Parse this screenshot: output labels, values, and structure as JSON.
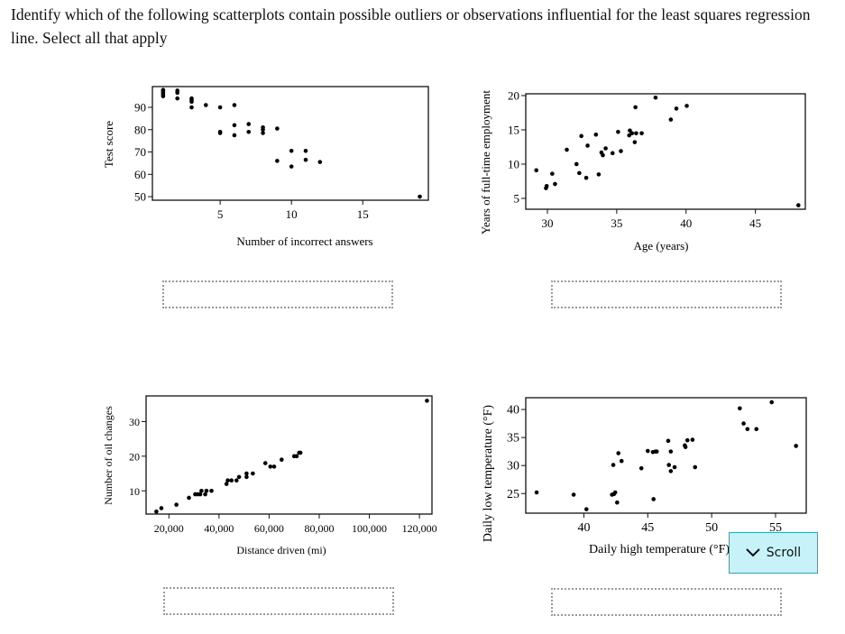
{
  "question": {
    "prompt": "Identify which of the following scatterplots contain possible outliers or observations influential for the least squares regression line. Select all that apply"
  },
  "answer_boxes": [
    "",
    "",
    "",
    ""
  ],
  "scroll_button": {
    "label": "Scroll",
    "icon": "chevron-down-icon",
    "background": "#c6f2f8",
    "border": "#2aa6b4"
  },
  "chart_data": [
    {
      "type": "scatter",
      "xlabel": "Number of incorrect answers",
      "ylabel": "Test score",
      "xlim": [
        0.25,
        19.6
      ],
      "ylim": [
        48.4,
        99.3
      ],
      "xticks": [
        5,
        10,
        15
      ],
      "xtick_labels": [
        "5",
        "10",
        "15"
      ],
      "yticks": [
        50,
        60,
        70,
        80,
        90
      ],
      "ytick_labels": [
        "50",
        "60",
        "70",
        "80",
        "90"
      ],
      "grid": false,
      "points": [
        [
          1,
          95
        ],
        [
          1,
          95.8
        ],
        [
          1,
          96.5
        ],
        [
          1,
          97.3
        ],
        [
          1,
          97.8
        ],
        [
          2,
          94
        ],
        [
          2,
          96.5
        ],
        [
          2,
          97.5
        ],
        [
          3,
          90
        ],
        [
          3,
          92.5
        ],
        [
          3,
          93.3
        ],
        [
          3,
          94
        ],
        [
          4,
          91
        ],
        [
          5,
          90
        ],
        [
          5,
          78.5
        ],
        [
          5,
          79
        ],
        [
          6,
          91
        ],
        [
          6,
          82
        ],
        [
          6,
          77.5
        ],
        [
          7,
          82.5
        ],
        [
          7,
          79
        ],
        [
          8,
          81
        ],
        [
          8,
          80
        ],
        [
          8,
          78.5
        ],
        [
          9,
          80.5
        ],
        [
          9,
          66
        ],
        [
          10,
          70.5
        ],
        [
          10,
          63.5
        ],
        [
          11,
          70.5
        ],
        [
          11,
          66.5
        ],
        [
          12,
          65.5
        ],
        [
          19,
          50
        ]
      ]
    },
    {
      "type": "scatter",
      "xlabel": "Age (years)",
      "ylabel": "Years of full-time employment",
      "xlim": [
        28.44,
        48.6
      ],
      "ylim": [
        3.42,
        20.26
      ],
      "xticks": [
        30,
        35,
        40,
        45
      ],
      "xtick_labels": [
        "30",
        "35",
        "40",
        "45"
      ],
      "yticks": [
        5,
        10,
        15,
        20
      ],
      "ytick_labels": [
        "5",
        "10",
        "15",
        "20"
      ],
      "grid": false,
      "points": [
        [
          29.2,
          9.1
        ],
        [
          29.9,
          6.5
        ],
        [
          29.95,
          6.8
        ],
        [
          30.35,
          8.6
        ],
        [
          30.55,
          7.1
        ],
        [
          31.4,
          12.1
        ],
        [
          32.1,
          10
        ],
        [
          32.3,
          8.7
        ],
        [
          32.45,
          14.1
        ],
        [
          32.8,
          8
        ],
        [
          32.9,
          12.7
        ],
        [
          33.5,
          14.3
        ],
        [
          33.7,
          8.5
        ],
        [
          33.9,
          11.7
        ],
        [
          34,
          11.3
        ],
        [
          34.2,
          12.3
        ],
        [
          34.7,
          11.6
        ],
        [
          35.1,
          14.7
        ],
        [
          35.3,
          11.9
        ],
        [
          35.9,
          14.2
        ],
        [
          35.95,
          14.9
        ],
        [
          36.1,
          14.5
        ],
        [
          36.3,
          13.2
        ],
        [
          36.35,
          18.3
        ],
        [
          36.4,
          14.5
        ],
        [
          36.8,
          14.5
        ],
        [
          37.8,
          19.7
        ],
        [
          38.9,
          16.5
        ],
        [
          39.3,
          18.1
        ],
        [
          40.05,
          18.5
        ],
        [
          48.1,
          4
        ]
      ]
    },
    {
      "type": "scatter",
      "xlabel": "Distance driven (mi)",
      "ylabel": "Number of oil changes",
      "xlim": [
        10900,
        125000
      ],
      "ylim": [
        3.3,
        37.4
      ],
      "xticks": [
        20000,
        40000,
        60000,
        80000,
        100000,
        120000
      ],
      "xtick_labels": [
        "20,000",
        "40,000",
        "60,000",
        "80,000",
        "100,000",
        "120,000"
      ],
      "yticks": [
        10,
        20,
        30
      ],
      "ytick_labels": [
        "10",
        "20",
        "30"
      ],
      "grid": false,
      "points": [
        [
          15000,
          4
        ],
        [
          17000,
          5
        ],
        [
          23000,
          6
        ],
        [
          28000,
          8
        ],
        [
          30500,
          9
        ],
        [
          31500,
          9
        ],
        [
          32500,
          9
        ],
        [
          33000,
          10
        ],
        [
          34500,
          9
        ],
        [
          35000,
          10
        ],
        [
          37000,
          10
        ],
        [
          43000,
          12
        ],
        [
          43500,
          13
        ],
        [
          45000,
          13
        ],
        [
          47000,
          13
        ],
        [
          48000,
          14
        ],
        [
          51000,
          14
        ],
        [
          51000,
          15
        ],
        [
          53500,
          15
        ],
        [
          58500,
          18
        ],
        [
          60500,
          17
        ],
        [
          62000,
          17
        ],
        [
          65000,
          19
        ],
        [
          70000,
          20
        ],
        [
          71000,
          20
        ],
        [
          72000,
          21
        ],
        [
          72500,
          21
        ],
        [
          123000,
          36
        ]
      ]
    },
    {
      "type": "scatter",
      "xlabel": "Daily high temperature (°F)",
      "ylabel": "Daily low temperature (°F)",
      "xlim": [
        35.45,
        57.4
      ],
      "ylim": [
        21.5,
        42.1
      ],
      "xticks": [
        40,
        45,
        50,
        55
      ],
      "xtick_labels": [
        "40",
        "45",
        "50",
        "55"
      ],
      "yticks": [
        25,
        30,
        35,
        40
      ],
      "ytick_labels": [
        "25",
        "30",
        "35",
        "40"
      ],
      "grid": false,
      "points": [
        [
          36.3,
          25.2
        ],
        [
          39.2,
          24.8
        ],
        [
          40.2,
          22.2
        ],
        [
          42.2,
          24.8
        ],
        [
          42.3,
          30.1
        ],
        [
          42.35,
          24.9
        ],
        [
          42.45,
          25.2
        ],
        [
          42.6,
          23.4
        ],
        [
          42.7,
          32.2
        ],
        [
          42.95,
          30.8
        ],
        [
          44.5,
          29.5
        ],
        [
          45,
          32.6
        ],
        [
          45.4,
          32.4
        ],
        [
          45.45,
          24
        ],
        [
          45.6,
          32.5
        ],
        [
          45.7,
          32.5
        ],
        [
          46.6,
          34.4
        ],
        [
          46.65,
          30.1
        ],
        [
          46.8,
          29
        ],
        [
          46.8,
          32.5
        ],
        [
          47.1,
          29.7
        ],
        [
          47.9,
          33.6
        ],
        [
          47.95,
          33.3
        ],
        [
          48.1,
          34.5
        ],
        [
          48.5,
          34.6
        ],
        [
          48.7,
          29.7
        ],
        [
          52.2,
          40.2
        ],
        [
          52.5,
          37.5
        ],
        [
          52.8,
          36.5
        ],
        [
          53.5,
          36.5
        ],
        [
          54.7,
          41.3
        ],
        [
          56.6,
          33.5
        ]
      ]
    }
  ]
}
